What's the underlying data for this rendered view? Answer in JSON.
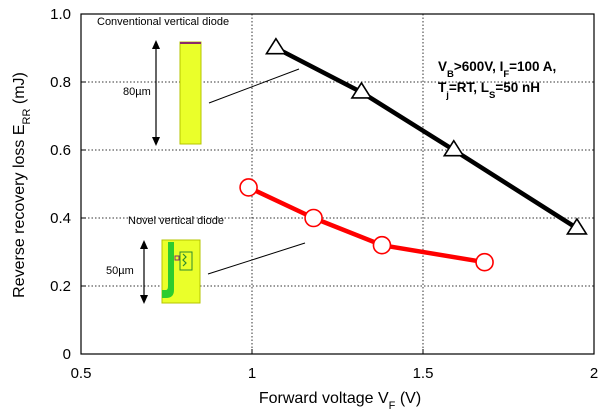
{
  "chart_data": {
    "type": "line",
    "xlabel": "Forward voltage V",
    "xlabel_sub": "F",
    "xlabel_unit": " (V)",
    "ylabel": "Reverse recovery loss E",
    "ylabel_sub": "RR",
    "ylabel_unit": " (mJ)",
    "xlim": [
      0.5,
      2
    ],
    "ylim": [
      0,
      1
    ],
    "x_ticks": [
      "0.5",
      "1",
      "1.5",
      "2"
    ],
    "y_ticks": [
      "0",
      "0.2",
      "0.4",
      "0.6",
      "0.8",
      "1.0"
    ],
    "grid": "dotted",
    "series": [
      {
        "marker": "triangle",
        "color": "#000000",
        "x": [
          1.07,
          1.32,
          1.59,
          1.95
        ],
        "y": [
          0.9,
          0.77,
          0.6,
          0.37
        ]
      },
      {
        "marker": "circle",
        "color": "#ff0000",
        "x": [
          0.99,
          1.18,
          1.38,
          1.68
        ],
        "y": [
          0.49,
          0.4,
          0.32,
          0.27
        ]
      }
    ],
    "annotations": {
      "conventional": {
        "label": "Conventional vertical diode",
        "dimension": "80µm"
      },
      "novel": {
        "label": "Novel vertical diode",
        "dimension": "50µm"
      },
      "conditions": {
        "line1": [
          {
            "t": "V",
            "sub": false
          },
          {
            "t": "B",
            "sub": true
          },
          {
            "t": ">600V,  I",
            "sub": false
          },
          {
            "t": "F",
            "sub": true
          },
          {
            "t": "=100 A,",
            "sub": false
          }
        ],
        "line2": [
          {
            "t": "T",
            "sub": false
          },
          {
            "t": "j",
            "sub": true
          },
          {
            "t": "=RT, L",
            "sub": false
          },
          {
            "t": "S",
            "sub": true
          },
          {
            "t": "=50 nH",
            "sub": false
          }
        ]
      }
    },
    "colors": {
      "axis": "#000000",
      "grid": "#333333",
      "inset_fill": "#eaff2a",
      "inset_green": "#2ecc2e",
      "inset_top": "#8b2a6a"
    }
  }
}
